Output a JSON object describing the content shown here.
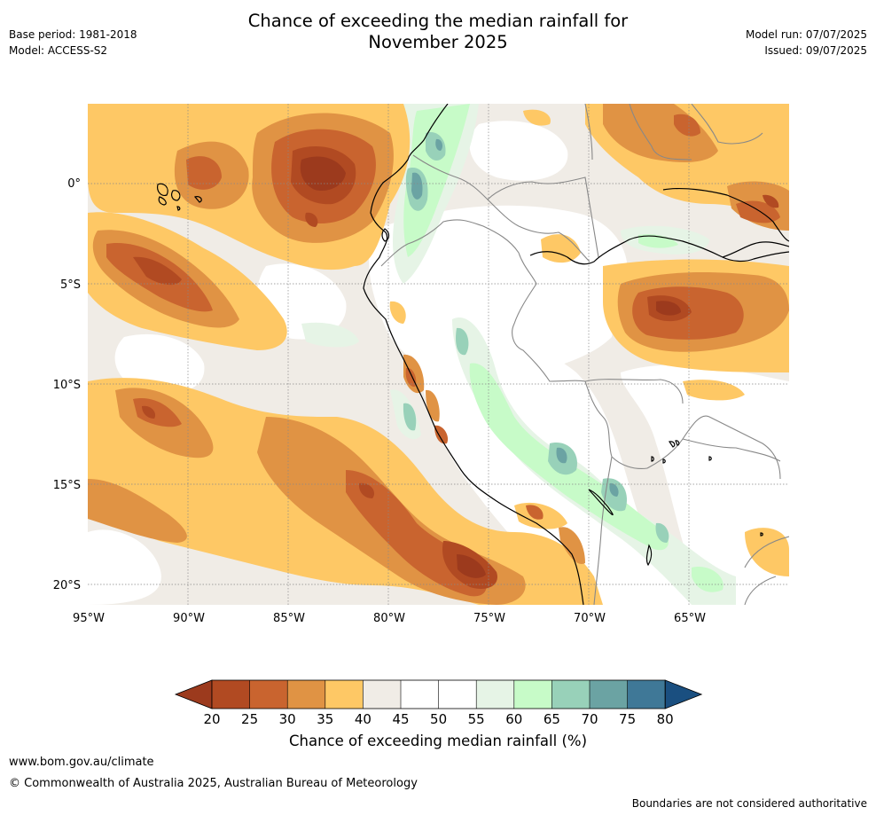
{
  "header": {
    "title_line1": "Chance of exceeding the median rainfall for",
    "title_line2": "November 2025",
    "base_period": "Base period: 1981-2018",
    "model": "Model: ACCESS-S2",
    "model_run": "Model run: 07/07/2025",
    "issued": "Issued: 09/07/2025"
  },
  "map": {
    "lon_ticks": [
      "95°W",
      "90°W",
      "85°W",
      "80°W",
      "75°W",
      "70°W",
      "65°W"
    ],
    "lat_ticks": [
      "0°",
      "5°S",
      "10°S",
      "15°S",
      "20°S"
    ],
    "lon_values": [
      -95,
      -90,
      -85,
      -80,
      -75,
      -70,
      -65
    ],
    "lat_values": [
      0,
      -5,
      -10,
      -15,
      -20
    ],
    "extent": {
      "lon_min": -95,
      "lon_max": -60,
      "lat_min": -21,
      "lat_max": 4
    }
  },
  "colorbar": {
    "label": "Chance of exceeding median rainfall (%)",
    "ticks": [
      "20",
      "25",
      "30",
      "35",
      "40",
      "45",
      "50",
      "55",
      "60",
      "65",
      "70",
      "75",
      "80"
    ],
    "colors": [
      "#9c3a1d",
      "#b14a22",
      "#c9642f",
      "#e09344",
      "#fec865",
      "#f0ece6",
      "#ffffff",
      "#ffffff",
      "#e6f4e6",
      "#c7fbc8",
      "#98d1b9",
      "#6ba3a3",
      "#3f7897",
      "#1a4f80"
    ],
    "extend": "both"
  },
  "footer": {
    "url": "www.bom.gov.au/climate",
    "copyright": "© Commonwealth of Australia 2025, Australian Bureau of Meteorology",
    "note": "Boundaries are not considered authoritative"
  }
}
